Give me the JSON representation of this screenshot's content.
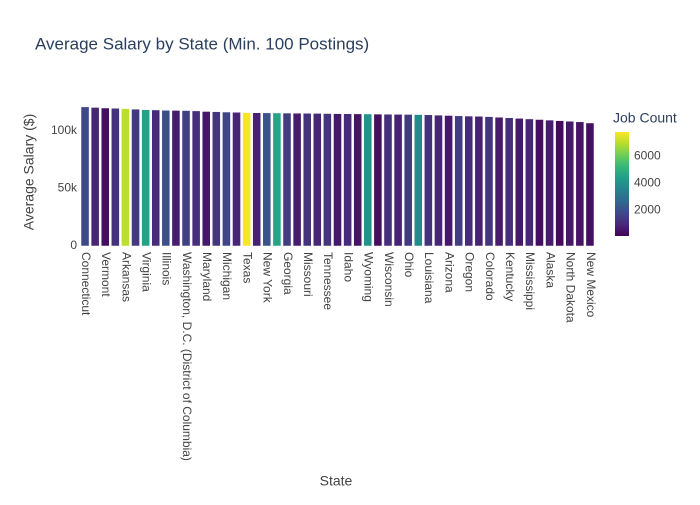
{
  "chart_data": {
    "type": "bar",
    "title": "Average Salary by State (Min. 100 Postings)",
    "x_label": "State",
    "y_label": "Average Salary ($)",
    "categories": [
      "Connecticut",
      null,
      "Vermont",
      null,
      "Arkansas",
      null,
      "Virginia",
      null,
      "Illinois",
      null,
      "Washington, D.C. (District of Columbia)",
      null,
      "Maryland",
      null,
      "Michigan",
      null,
      "Texas",
      null,
      "New York",
      null,
      "Georgia",
      null,
      "Missouri",
      null,
      "Tennessee",
      null,
      "Idaho",
      null,
      "Wyoming",
      null,
      "Wisconsin",
      null,
      "Ohio",
      null,
      "Louisiana",
      null,
      "Arizona",
      null,
      "Oregon",
      null,
      "Colorado",
      null,
      "Kentucky",
      null,
      "Mississippi",
      null,
      "Alaska",
      null,
      "North Dakota",
      null,
      "New Mexico"
    ],
    "values": [
      121000,
      120500,
      120000,
      119800,
      119500,
      119000,
      118500,
      118300,
      118000,
      117900,
      117800,
      117500,
      117000,
      116800,
      116500,
      116300,
      116000,
      115900,
      115800,
      115700,
      115600,
      115500,
      115400,
      115300,
      115200,
      115100,
      115000,
      114900,
      114800,
      114700,
      114600,
      114500,
      114400,
      114300,
      114100,
      113800,
      113500,
      113200,
      113000,
      112800,
      112500,
      112000,
      111500,
      111000,
      110500,
      110000,
      109500,
      109000,
      108500,
      108000,
      107000
    ],
    "color_values": [
      1800,
      900,
      400,
      1200,
      7000,
      1400,
      4500,
      1000,
      2000,
      700,
      1600,
      1100,
      600,
      1300,
      1700,
      900,
      7700,
      800,
      2100,
      4600,
      1500,
      700,
      1200,
      900,
      1300,
      600,
      1000,
      500,
      4000,
      400,
      1100,
      800,
      1400,
      3800,
      1200,
      900,
      600,
      1500,
      1000,
      800,
      1300,
      700,
      1100,
      600,
      900,
      400,
      700,
      300,
      600,
      500,
      400
    ],
    "color_title": "Job Count",
    "colorscale": [
      "#440154",
      "#482878",
      "#3e4989",
      "#31688e",
      "#26828e",
      "#1f9e89",
      "#35b779",
      "#6ece58",
      "#b5de2b",
      "#fde725"
    ],
    "clim": [
      100,
      7780
    ],
    "cticks": [
      2000,
      4000,
      6000
    ],
    "ylim": [
      0,
      126000
    ],
    "yticks": [
      0,
      {
        "value": 50000,
        "label": "50k"
      },
      {
        "value": 100000,
        "label": "100k"
      }
    ],
    "grid": false
  }
}
